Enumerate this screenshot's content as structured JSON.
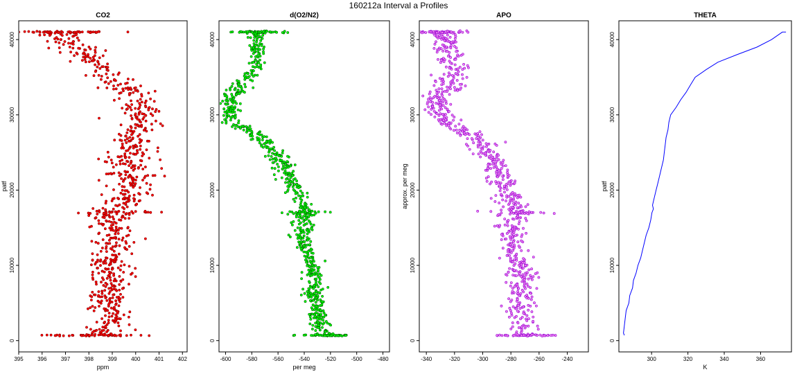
{
  "figure": {
    "title": "160212a   Interval a Profiles"
  },
  "chart_data": [
    {
      "type": "scatter",
      "title": "CO2",
      "xlabel": "ppm",
      "ylabel": "patf",
      "xlim": [
        395,
        402.2
      ],
      "ylim": [
        -1500,
        42500
      ],
      "xticks": [
        395,
        396,
        397,
        398,
        399,
        400,
        401,
        402
      ],
      "yticks": [
        0,
        10000,
        20000,
        30000,
        40000
      ],
      "grid": false,
      "colors": {
        "outline": "#8b0000",
        "fill": "#ff0000"
      },
      "profile": [
        [
          0,
          398.0
        ],
        [
          1000,
          398.6
        ],
        [
          2000,
          398.9
        ],
        [
          3000,
          399.0
        ],
        [
          4000,
          398.8
        ],
        [
          5000,
          398.9
        ],
        [
          6000,
          398.8
        ],
        [
          7000,
          399.0
        ],
        [
          8000,
          398.9
        ],
        [
          9000,
          399.0
        ],
        [
          10000,
          398.8
        ],
        [
          11000,
          398.9
        ],
        [
          12000,
          399.0
        ],
        [
          13000,
          399.0
        ],
        [
          14000,
          399.2
        ],
        [
          15000,
          399.1
        ],
        [
          16000,
          398.9
        ],
        [
          17000,
          399.0
        ],
        [
          18000,
          399.4
        ],
        [
          19000,
          399.6
        ],
        [
          20000,
          399.8
        ],
        [
          21000,
          399.8
        ],
        [
          22000,
          399.9
        ],
        [
          23000,
          399.8
        ],
        [
          24000,
          399.7
        ],
        [
          25000,
          399.9
        ],
        [
          26000,
          400.0
        ],
        [
          27000,
          399.8
        ],
        [
          28000,
          400.0
        ],
        [
          29000,
          400.2
        ],
        [
          30000,
          400.3
        ],
        [
          31000,
          400.1
        ],
        [
          32000,
          400.0
        ],
        [
          33000,
          399.8
        ],
        [
          34000,
          399.5
        ],
        [
          35000,
          399.1
        ],
        [
          36000,
          398.8
        ],
        [
          37000,
          398.4
        ],
        [
          38000,
          397.9
        ],
        [
          39000,
          397.4
        ],
        [
          40000,
          397.0
        ],
        [
          41000,
          396.6
        ]
      ],
      "scatter_sd": 0.45
    },
    {
      "type": "scatter",
      "title": "d(O2/N2)",
      "xlabel": "per meg",
      "ylabel": "",
      "xlim": [
        -605,
        -475
      ],
      "ylim": [
        -1500,
        42500
      ],
      "xticks": [
        -600,
        -580,
        -560,
        -540,
        -520,
        -500,
        -480
      ],
      "yticks": [
        0,
        10000,
        20000,
        30000,
        40000
      ],
      "grid": false,
      "colors": {
        "outline": "#006400",
        "fill": "#00ff00"
      },
      "profile": [
        [
          0,
          -522
        ],
        [
          2000,
          -527
        ],
        [
          4000,
          -530
        ],
        [
          6000,
          -533
        ],
        [
          8000,
          -532
        ],
        [
          10000,
          -533
        ],
        [
          12000,
          -540
        ],
        [
          14000,
          -543
        ],
        [
          16000,
          -540
        ],
        [
          17000,
          -538
        ],
        [
          18000,
          -540
        ],
        [
          20000,
          -545
        ],
        [
          22000,
          -552
        ],
        [
          24000,
          -558
        ],
        [
          26000,
          -568
        ],
        [
          27000,
          -574
        ],
        [
          28000,
          -585
        ],
        [
          29000,
          -595
        ],
        [
          30000,
          -597
        ],
        [
          31000,
          -596
        ],
        [
          32000,
          -598
        ],
        [
          33000,
          -592
        ],
        [
          34000,
          -588
        ],
        [
          35000,
          -585
        ],
        [
          36000,
          -578
        ],
        [
          37000,
          -576
        ],
        [
          38000,
          -575
        ],
        [
          39000,
          -576
        ],
        [
          40000,
          -575
        ],
        [
          41000,
          -576
        ]
      ],
      "scatter_sd": 4
    },
    {
      "type": "scatter",
      "title": "APO",
      "xlabel": "",
      "ylabel": "approx. per meg",
      "xlim": [
        -345,
        -225
      ],
      "ylim": [
        -1500,
        42500
      ],
      "xticks": [
        -340,
        -320,
        -300,
        -280,
        -260,
        -240
      ],
      "yticks": [
        0,
        10000,
        20000,
        30000,
        40000
      ],
      "grid": false,
      "colors": {
        "outline": "#9400d3",
        "fill": "#ee82ee"
      },
      "profile": [
        [
          0,
          -270
        ],
        [
          2000,
          -272
        ],
        [
          4000,
          -273
        ],
        [
          6000,
          -274
        ],
        [
          8000,
          -273
        ],
        [
          10000,
          -275
        ],
        [
          12000,
          -278
        ],
        [
          14000,
          -280
        ],
        [
          16000,
          -278
        ],
        [
          17000,
          -276
        ],
        [
          18000,
          -279
        ],
        [
          20000,
          -283
        ],
        [
          22000,
          -287
        ],
        [
          24000,
          -292
        ],
        [
          26000,
          -300
        ],
        [
          27000,
          -305
        ],
        [
          28000,
          -316
        ],
        [
          29000,
          -326
        ],
        [
          30000,
          -330
        ],
        [
          31000,
          -330
        ],
        [
          32000,
          -332
        ],
        [
          33000,
          -328
        ],
        [
          34000,
          -324
        ],
        [
          35000,
          -322
        ],
        [
          36000,
          -320
        ],
        [
          37000,
          -322
        ],
        [
          38000,
          -323
        ],
        [
          39000,
          -325
        ],
        [
          40000,
          -326
        ],
        [
          41000,
          -330
        ]
      ],
      "scatter_sd": 5
    },
    {
      "type": "line",
      "title": "THETA",
      "xlabel": "K",
      "ylabel": "patf",
      "xlim": [
        282,
        377
      ],
      "ylim": [
        -1500,
        42500
      ],
      "xticks": [
        300,
        320,
        340,
        360
      ],
      "yticks": [
        0,
        10000,
        20000,
        30000,
        40000
      ],
      "grid": false,
      "colors": {
        "line": "#0000ff"
      },
      "points": [
        [
          285,
          700
        ],
        [
          284.5,
          1000
        ],
        [
          285,
          2000
        ],
        [
          285.5,
          3000
        ],
        [
          286,
          4000
        ],
        [
          287.5,
          5000
        ],
        [
          288,
          6000
        ],
        [
          289.5,
          7000
        ],
        [
          290,
          8000
        ],
        [
          291.5,
          9000
        ],
        [
          292.5,
          10000
        ],
        [
          294,
          11000
        ],
        [
          295,
          12000
        ],
        [
          296,
          13000
        ],
        [
          297,
          14000
        ],
        [
          298.5,
          15000
        ],
        [
          299.5,
          16000
        ],
        [
          300.2,
          17000
        ],
        [
          301,
          17500
        ],
        [
          300.5,
          18000
        ],
        [
          301.5,
          19000
        ],
        [
          302.5,
          20000
        ],
        [
          303.5,
          21000
        ],
        [
          304.5,
          22000
        ],
        [
          305.5,
          23000
        ],
        [
          306.5,
          24000
        ],
        [
          307,
          25000
        ],
        [
          307.5,
          26000
        ],
        [
          308,
          27000
        ],
        [
          309,
          28000
        ],
        [
          309.5,
          29000
        ],
        [
          310.5,
          30000
        ],
        [
          313.5,
          31000
        ],
        [
          316,
          32000
        ],
        [
          319,
          33000
        ],
        [
          321.5,
          34000
        ],
        [
          324,
          35000
        ],
        [
          330,
          36000
        ],
        [
          336.5,
          37000
        ],
        [
          347,
          38000
        ],
        [
          358,
          39000
        ],
        [
          366,
          40000
        ],
        [
          372,
          41000
        ],
        [
          374,
          41000
        ]
      ]
    }
  ]
}
